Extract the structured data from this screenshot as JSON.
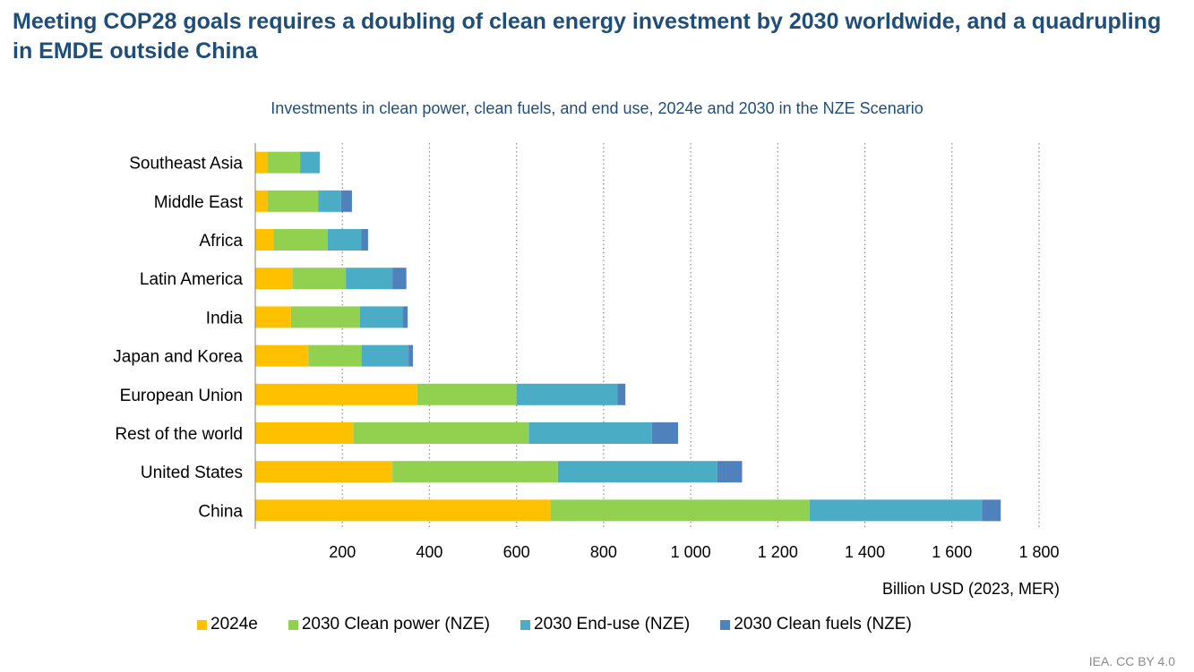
{
  "page": {
    "title": "Meeting COP28 goals requires a doubling of clean energy investment by 2030 worldwide, and a quadrupling in EMDE outside China",
    "source": "IEA. CC BY 4.0"
  },
  "chart_data": {
    "type": "bar",
    "orientation": "horizontal",
    "stacked": true,
    "subtitle": "Investments in clean power, clean fuels, and end use, 2024e and 2030 in the NZE Scenario",
    "xlabel": "Billion USD (2023, MER)",
    "ylabel": "",
    "xlim": [
      0,
      1800
    ],
    "xticks": [
      200,
      400,
      600,
      800,
      1000,
      1200,
      1400,
      1600,
      1800
    ],
    "xtick_labels": [
      "200",
      "400",
      "600",
      "800",
      "1 000",
      "1 200",
      "1 400",
      "1 600",
      "1 800"
    ],
    "grid": "vertical dotted",
    "legend_position": "bottom",
    "categories": [
      "Southeast Asia",
      "Middle East",
      "Africa",
      "Latin America",
      "India",
      "Japan and Korea",
      "European Union",
      "Rest of the world",
      "United States",
      "China"
    ],
    "series": [
      {
        "name": "2024e",
        "color": "#ffc000",
        "values": [
          28,
          28,
          42,
          85,
          82,
          122,
          372,
          225,
          315,
          678
        ]
      },
      {
        "name": "2030 Clean power (NZE)",
        "color": "#92d050",
        "values": [
          75,
          117,
          124,
          123,
          158,
          122,
          228,
          403,
          380,
          595
        ]
      },
      {
        "name": "2030 End-use (NZE)",
        "color": "#4bacc6",
        "values": [
          45,
          52,
          77,
          107,
          98,
          108,
          232,
          283,
          366,
          396
        ]
      },
      {
        "name": "2030 Clean fuels (NZE)",
        "color": "#4f81bd",
        "values": [
          0,
          25,
          16,
          32,
          12,
          10,
          18,
          60,
          57,
          43
        ]
      }
    ]
  }
}
